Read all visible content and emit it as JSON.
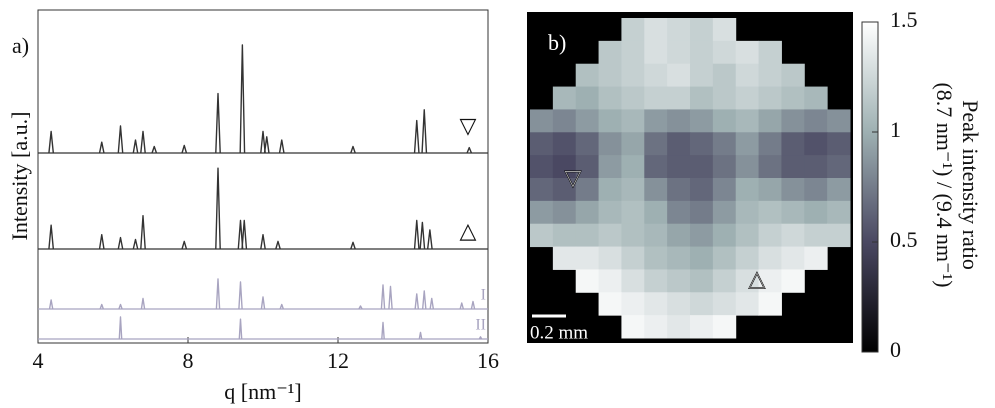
{
  "chart_data": [
    {
      "type": "line",
      "panel_label": "a)",
      "xlabel": "q [nm⁻¹]",
      "ylabel": "Intensity [a.u.]",
      "xlim": [
        4,
        16
      ],
      "xticks": [
        4,
        8,
        12,
        16
      ],
      "series": [
        {
          "name": "▽",
          "color": "#333333",
          "x": [
            4.35,
            5.7,
            6.2,
            6.6,
            6.8,
            7.1,
            7.9,
            8.8,
            9.45,
            10.0,
            10.1,
            10.5,
            12.4,
            14.1,
            14.3,
            15.5
          ],
          "values": [
            0.2,
            0.1,
            0.25,
            0.12,
            0.2,
            0.06,
            0.07,
            0.55,
            1.0,
            0.2,
            0.15,
            0.12,
            0.06,
            0.3,
            0.4,
            0.05
          ]
        },
        {
          "name": "△",
          "color": "#333333",
          "x": [
            4.35,
            5.7,
            6.2,
            6.6,
            6.8,
            7.9,
            8.8,
            9.4,
            9.5,
            10.0,
            10.4,
            12.4,
            14.1,
            14.25,
            14.45
          ],
          "values": [
            0.25,
            0.15,
            0.12,
            0.1,
            0.35,
            0.08,
            0.85,
            0.3,
            0.3,
            0.15,
            0.08,
            0.07,
            0.3,
            0.28,
            0.2
          ]
        },
        {
          "name": "I",
          "color": "#a8a4c0",
          "x": [
            4.35,
            5.7,
            6.2,
            6.8,
            8.8,
            9.4,
            10.0,
            10.5,
            12.6,
            13.2,
            13.4,
            14.1,
            14.3,
            14.5,
            15.3,
            15.6
          ],
          "values": [
            0.3,
            0.15,
            0.15,
            0.35,
            1.0,
            0.9,
            0.4,
            0.15,
            0.1,
            0.8,
            0.75,
            0.5,
            0.6,
            0.35,
            0.2,
            0.25
          ]
        },
        {
          "name": "II",
          "color": "#a8a4c0",
          "x": [
            6.2,
            9.4,
            13.2,
            14.2,
            15.8
          ],
          "values": [
            1.0,
            0.9,
            0.75,
            0.3,
            0.1
          ]
        }
      ]
    },
    {
      "type": "heatmap",
      "panel_label": "b)",
      "scale_bar": "0.2 mm",
      "colormap": [
        "#000000",
        "#4a4862",
        "#9eb0b2",
        "#ffffff"
      ],
      "colorbar": {
        "label": [
          "Peak intensity ratio",
          "(8.7 nm⁻¹) / (9.4 nm⁻¹)"
        ],
        "lim": [
          0,
          1.5
        ],
        "ticks": [
          0,
          0.5,
          1,
          1.5
        ]
      },
      "values": [
        [
          null,
          null,
          null,
          null,
          1.2,
          1.3,
          1.25,
          1.2,
          1.3,
          null,
          null,
          null,
          null,
          null
        ],
        [
          null,
          null,
          null,
          1.15,
          1.2,
          1.3,
          1.25,
          1.2,
          1.25,
          1.3,
          1.2,
          null,
          null,
          null
        ],
        [
          null,
          null,
          1.1,
          1.15,
          1.2,
          1.25,
          1.3,
          1.2,
          1.15,
          1.25,
          1.2,
          1.15,
          null,
          null
        ],
        [
          null,
          1.05,
          1.0,
          1.1,
          1.15,
          1.2,
          1.2,
          1.1,
          1.15,
          1.2,
          1.15,
          1.1,
          1.05,
          null
        ],
        [
          0.85,
          0.8,
          0.9,
          1.0,
          1.05,
          0.9,
          0.85,
          0.9,
          1.0,
          1.05,
          0.95,
          0.85,
          0.8,
          0.85
        ],
        [
          0.6,
          0.55,
          0.65,
          0.85,
          0.95,
          0.7,
          0.6,
          0.65,
          0.75,
          0.9,
          0.75,
          0.6,
          0.55,
          0.6
        ],
        [
          0.55,
          0.5,
          0.6,
          0.9,
          1.0,
          0.65,
          0.6,
          0.6,
          0.7,
          0.85,
          0.7,
          0.6,
          0.6,
          0.65
        ],
        [
          0.65,
          0.6,
          0.75,
          1.0,
          1.05,
          0.85,
          0.7,
          0.65,
          0.8,
          1.0,
          0.95,
          0.85,
          0.8,
          0.9
        ],
        [
          0.9,
          0.85,
          0.95,
          1.05,
          1.1,
          1.0,
          0.8,
          0.75,
          0.9,
          1.05,
          1.1,
          1.05,
          1.0,
          1.05
        ],
        [
          1.15,
          1.1,
          1.1,
          1.15,
          1.1,
          1.05,
          0.95,
          0.9,
          1.0,
          1.1,
          1.2,
          1.25,
          1.2,
          1.2
        ],
        [
          null,
          1.35,
          1.35,
          1.3,
          1.2,
          1.1,
          1.05,
          1.0,
          1.1,
          1.2,
          1.3,
          1.35,
          1.4,
          null
        ],
        [
          null,
          null,
          1.45,
          1.4,
          1.3,
          1.2,
          1.15,
          1.1,
          1.2,
          1.3,
          1.4,
          1.45,
          null,
          null
        ],
        [
          null,
          null,
          null,
          1.45,
          1.4,
          1.35,
          1.3,
          1.25,
          1.3,
          1.35,
          1.45,
          null,
          null,
          null
        ],
        [
          null,
          null,
          null,
          null,
          1.45,
          1.4,
          1.35,
          1.4,
          1.45,
          null,
          null,
          null,
          null,
          null
        ]
      ]
    }
  ]
}
